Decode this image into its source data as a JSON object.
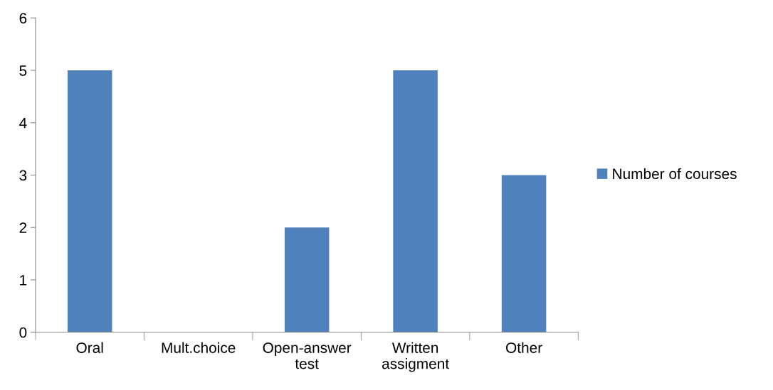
{
  "chart_data": {
    "type": "bar",
    "categories": [
      "Oral",
      "Mult.choice",
      "Open-answer\ntest",
      "Written\nassigment",
      "Other"
    ],
    "series": [
      {
        "name": "Number of courses",
        "color": "#4f81bd",
        "values": [
          5,
          0,
          2,
          5,
          3
        ]
      }
    ],
    "ylim": [
      0,
      6
    ],
    "yticks": [
      0,
      1,
      2,
      3,
      4,
      5,
      6
    ],
    "grid": false,
    "legend": "right"
  }
}
